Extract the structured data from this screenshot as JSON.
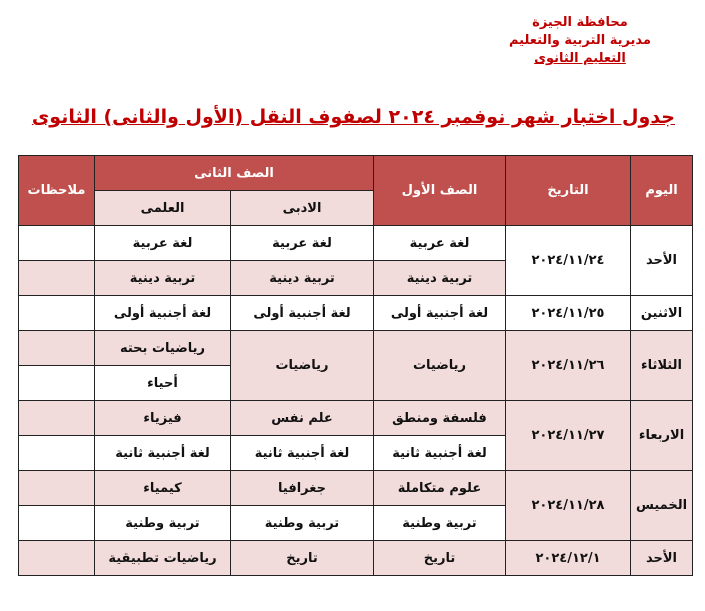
{
  "header": {
    "line1": "محافظة الجيزة",
    "line2": "مديرية التربية والتعليم",
    "line3": "التعليم الثانوى"
  },
  "title": "جدول اختبار شهر نوفمبر ٢٠٢٤ لصفوف النقل (الأول والثانى) الثانوى",
  "columns": {
    "day": "اليوم",
    "date": "التاريخ",
    "first": "الصف الأول",
    "second": "الصف الثانى",
    "literary": "الادبى",
    "scientific": "العلمى",
    "notes": "ملاحظات"
  },
  "colors": {
    "header_bg": "#c0504d",
    "shade": "#f2dcdb",
    "title": "#c00000"
  },
  "rows": [
    {
      "day": "الأحد",
      "date": "٢٠٢٤/١١/٢٤",
      "first": [
        "لغة عربية",
        "تربية دينية"
      ],
      "literary": [
        "لغة عربية",
        "تربية دينية"
      ],
      "scientific": [
        "لغة عربية",
        "تربية دينية"
      ]
    },
    {
      "day": "الاثنين",
      "date": "٢٠٢٤/١١/٢٥",
      "first": [
        "لغة أجنبية أولى"
      ],
      "literary": [
        "لغة أجنبية أولى"
      ],
      "scientific": [
        "لغة أجنبية أولى"
      ]
    },
    {
      "day": "الثلاثاء",
      "date": "٢٠٢٤/١١/٢٦",
      "first": [
        "رياضيات"
      ],
      "literary": [
        "رياضيات"
      ],
      "scientific": [
        "رياضيات بحته",
        "أحياء"
      ]
    },
    {
      "day": "الاربعاء",
      "date": "٢٠٢٤/١١/٢٧",
      "first": [
        "فلسفة ومنطق",
        "لغة أجنبية ثانية"
      ],
      "literary": [
        "علم نفس",
        "لغة أجنبية ثانية"
      ],
      "scientific": [
        "فيزياء",
        "لغة أجنبية ثانية"
      ]
    },
    {
      "day": "الخميس",
      "date": "٢٠٢٤/١١/٢٨",
      "first": [
        "علوم متكاملة",
        "تربية وطنية"
      ],
      "literary": [
        "جغرافيا",
        "تربية وطنية"
      ],
      "scientific": [
        "كيمياء",
        "تربية وطنية"
      ]
    },
    {
      "day": "الأحد",
      "date": "٢٠٢٤/١٢/١",
      "first": [
        "تاريخ"
      ],
      "literary": [
        "تاريخ"
      ],
      "scientific": [
        "رياضيات تطبيقية"
      ]
    }
  ]
}
